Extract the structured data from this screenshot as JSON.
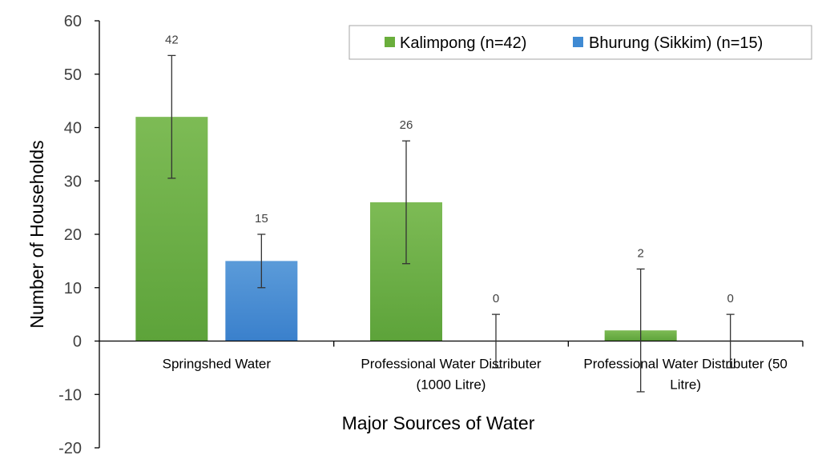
{
  "chart_data": {
    "type": "bar",
    "categories": [
      [
        "Springshed Water"
      ],
      [
        "Professional Water Distributer",
        "(1000 Litre)"
      ],
      [
        "Professional Water Distributer (50",
        "Litre)"
      ]
    ],
    "series": [
      {
        "name": "Kalimpong (n=42)",
        "color": "#6AAE3C",
        "values": [
          42,
          26,
          2
        ],
        "labels": [
          "42",
          "26",
          "2"
        ],
        "error_low": [
          30.5,
          14.5,
          -9.5
        ],
        "error_high": [
          53.5,
          37.5,
          13.5
        ]
      },
      {
        "name": "Bhurung (Sikkim) (n=15)",
        "color": "#3F8AD3",
        "values": [
          15,
          0,
          0
        ],
        "labels": [
          "15",
          "0",
          "0"
        ],
        "error_low": [
          10,
          -5,
          -5
        ],
        "error_high": [
          20,
          5,
          5
        ]
      }
    ],
    "ylim": [
      -20,
      60
    ],
    "yticks": [
      -20,
      -10,
      0,
      10,
      20,
      30,
      40,
      50,
      60
    ],
    "ylabel": "Number of Households",
    "xlabel": "Major Sources of Water",
    "legend": "top-right",
    "grid": false
  }
}
